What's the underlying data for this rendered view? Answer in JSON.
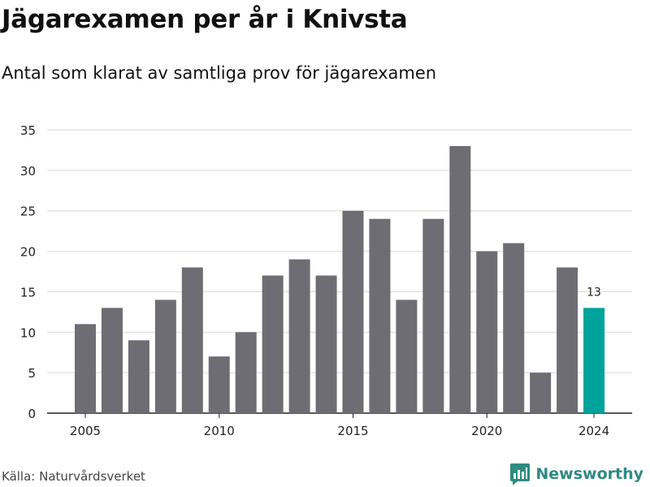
{
  "header": {
    "title": "Jägarexamen per år i Knivsta",
    "subtitle": "Antal som klarat av samtliga prov för jägarexamen"
  },
  "footer": {
    "source": "Källa: Naturvårdsverket",
    "brand": "Newsworthy"
  },
  "colors": {
    "bar": "#6e6d74",
    "highlight": "#00a39a",
    "grid": "#d9d9d9",
    "brand": "#2e8b82"
  },
  "icons": {
    "brand_logo": "newsworthy-logo-icon"
  },
  "chart_data": {
    "type": "bar",
    "x": [
      2005,
      2006,
      2007,
      2008,
      2009,
      2010,
      2011,
      2012,
      2013,
      2014,
      2015,
      2016,
      2017,
      2018,
      2019,
      2020,
      2021,
      2022,
      2023,
      2024
    ],
    "values": [
      11,
      13,
      9,
      14,
      18,
      7,
      10,
      17,
      19,
      17,
      25,
      24,
      14,
      24,
      33,
      20,
      21,
      5,
      18,
      13
    ],
    "x_tick_labels": [
      "2005",
      "2010",
      "2015",
      "2020",
      "2024"
    ],
    "y_ticks": [
      0,
      5,
      10,
      15,
      20,
      25,
      30,
      35
    ],
    "ylim": [
      0,
      35
    ],
    "highlight": {
      "x": 2024,
      "label": "13"
    },
    "grid": true,
    "xlabel": "",
    "ylabel": ""
  }
}
